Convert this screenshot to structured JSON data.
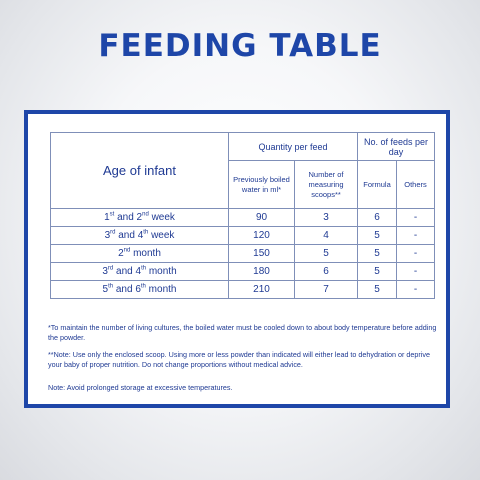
{
  "title": "FEEDING TABLE",
  "table": {
    "age_header": "Age of infant",
    "quantity_header": "Quantity per feed",
    "feeds_header": "No. of feeds per day",
    "col_water": "Previously boiled water in ml*",
    "col_scoops": "Number of measuring scoops**",
    "col_formula": "Formula",
    "col_others": "Others",
    "rows": [
      {
        "age_a": "1",
        "sup_a": "st",
        "mid": " and 2",
        "sup_b": "nd",
        "tail": " week",
        "water": "90",
        "scoops": "3",
        "formula": "6",
        "others": "-"
      },
      {
        "age_a": "3",
        "sup_a": "rd",
        "mid": " and 4",
        "sup_b": "th",
        "tail": " week",
        "water": "120",
        "scoops": "4",
        "formula": "5",
        "others": "-"
      },
      {
        "age_a": "2",
        "sup_a": "nd",
        "mid": "",
        "sup_b": "",
        "tail": " month",
        "water": "150",
        "scoops": "5",
        "formula": "5",
        "others": "-"
      },
      {
        "age_a": "3",
        "sup_a": "rd",
        "mid": " and 4",
        "sup_b": "th",
        "tail": " month",
        "water": "180",
        "scoops": "6",
        "formula": "5",
        "others": "-"
      },
      {
        "age_a": "5",
        "sup_a": "th",
        "mid": " and 6",
        "sup_b": "th",
        "tail": " month",
        "water": "210",
        "scoops": "7",
        "formula": "5",
        "others": "-"
      }
    ]
  },
  "notes": {
    "note1": "*To maintain the number of living cultures, the boiled water must be cooled down to about body temperature before adding the powder.",
    "note2": "**Note: Use only the enclosed scoop. Using more or less powder than indicated will either lead to dehydration or deprive your baby of proper nutrition. Do not change proportions without medical advice.",
    "note3": "Note: Avoid prolonged storage at excessive temperatures."
  }
}
